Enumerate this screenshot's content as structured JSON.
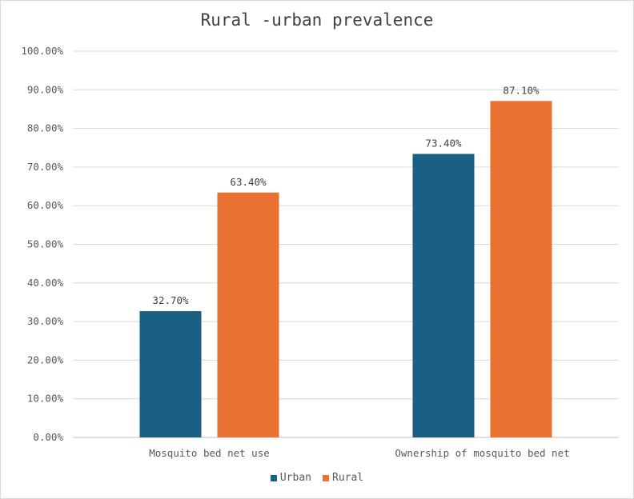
{
  "chart_data": {
    "type": "bar",
    "title": "Rural -urban prevalence",
    "categories": [
      "Mosquito bed net use",
      "Ownership of mosquito bed net"
    ],
    "series": [
      {
        "name": "Urban",
        "values": [
          32.7,
          73.4
        ],
        "labels": [
          "32.70%",
          "73.40%"
        ],
        "color": "#1a5f84"
      },
      {
        "name": "Rural",
        "values": [
          63.4,
          87.1
        ],
        "labels": [
          "63.40%",
          "87.10%"
        ],
        "color": "#e97132"
      }
    ],
    "yticks": [
      "0.00%",
      "10.00%",
      "20.00%",
      "30.00%",
      "40.00%",
      "50.00%",
      "60.00%",
      "70.00%",
      "80.00%",
      "90.00%",
      "100.00%"
    ],
    "ylim": [
      0,
      100
    ],
    "grid": true,
    "legend_position": "bottom"
  }
}
